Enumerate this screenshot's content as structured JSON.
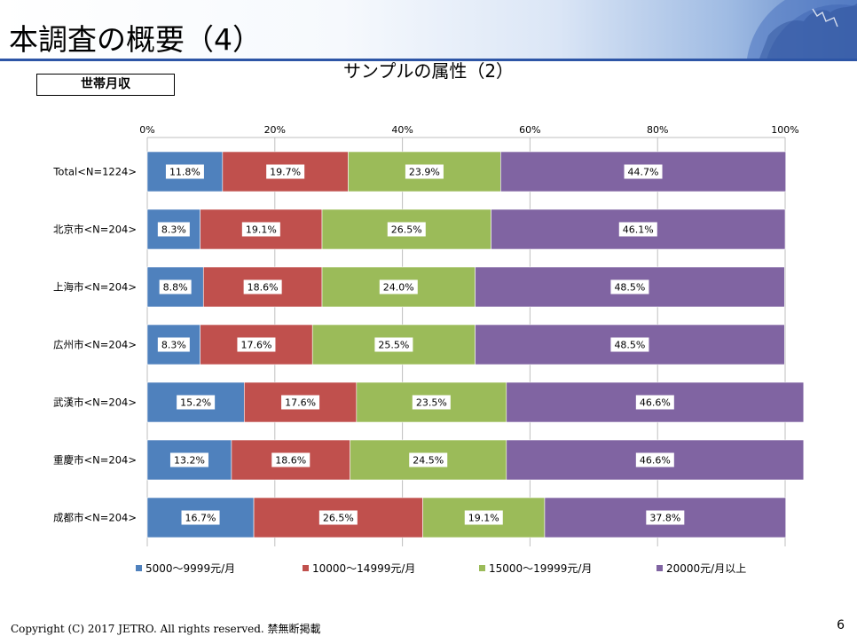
{
  "slide": {
    "title": "本調査の概要（4）",
    "subtitle": "サンプルの属性（2）",
    "section_label": "世帯月収",
    "footer": "Copyright (C) 2017 JETRO. All rights reserved.  禁無断掲載",
    "page_number": "6"
  },
  "chart_data": {
    "type": "bar",
    "orientation": "horizontal",
    "stacked": true,
    "percent": true,
    "categories": [
      "Total<N=1224>",
      "北京市<N=204>",
      "上海市<N=204>",
      "広州市<N=204>",
      "武漢市<N=204>",
      "重慶市<N=204>",
      "成都市<N=204>"
    ],
    "x_ticks": [
      "0%",
      "20%",
      "40%",
      "60%",
      "80%",
      "100%"
    ],
    "xlim": [
      0,
      100
    ],
    "grid": true,
    "legend_position": "bottom",
    "series": [
      {
        "name": "5000～9999元/月",
        "color": "#4f81bd",
        "values": [
          11.8,
          8.3,
          8.8,
          8.3,
          15.2,
          13.2,
          16.7
        ],
        "labels": [
          "11.8%",
          "8.3%",
          "8.8%",
          "8.3%",
          "15.2%",
          "13.2%",
          "16.7%"
        ]
      },
      {
        "name": "10000～14999元/月",
        "color": "#c0504d",
        "values": [
          19.7,
          19.1,
          18.6,
          17.6,
          17.6,
          18.6,
          26.5
        ],
        "labels": [
          "19.7%",
          "19.1%",
          "18.6%",
          "17.6%",
          "17.6%",
          "18.6%",
          "26.5%"
        ]
      },
      {
        "name": "15000～19999元/月",
        "color": "#9bbb59",
        "values": [
          23.9,
          26.5,
          24.0,
          25.5,
          23.5,
          24.5,
          19.1
        ],
        "labels": [
          "23.9%",
          "26.5%",
          "24.0%",
          "25.5%",
          "23.5%",
          "24.5%",
          "19.1%"
        ]
      },
      {
        "name": "20000元/月以上",
        "color": "#8064a2",
        "values": [
          44.7,
          46.1,
          48.5,
          48.5,
          46.6,
          46.6,
          37.8
        ],
        "labels": [
          "44.7%",
          "46.1%",
          "48.5%",
          "48.5%",
          "46.6%",
          "46.6%",
          "37.8%"
        ]
      }
    ]
  }
}
